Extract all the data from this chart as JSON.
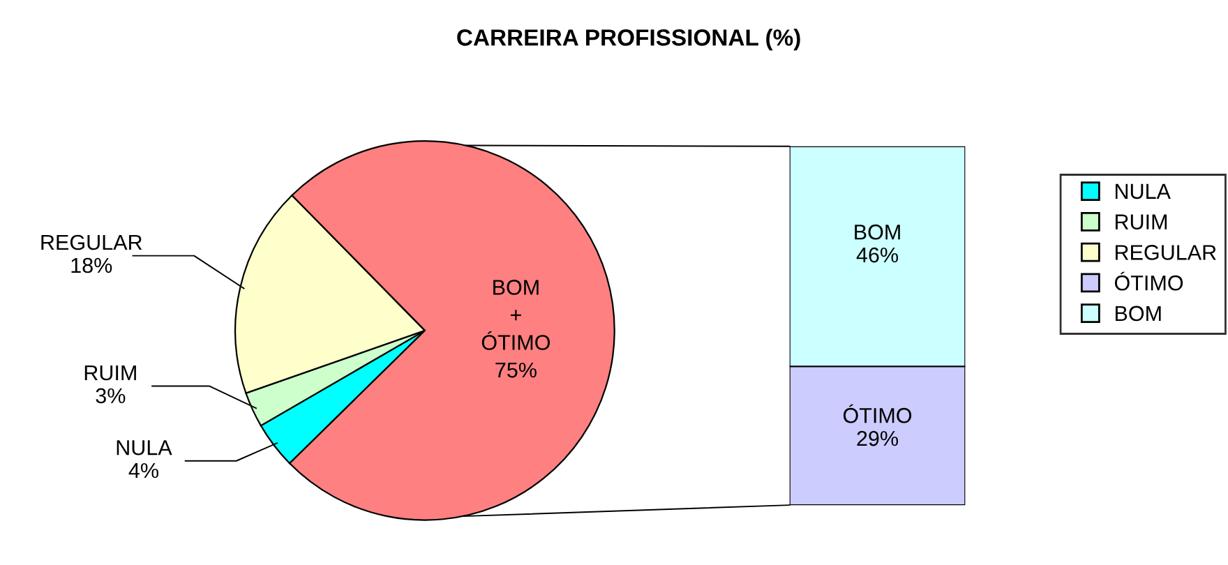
{
  "chart_data": [
    {
      "type": "pie",
      "title": "CARREIRA PROFISSIONAL (%)",
      "categories": [
        "NULA",
        "RUIM",
        "REGULAR",
        null
      ],
      "values": [
        4,
        3,
        18,
        75
      ],
      "colors": [
        "#00ffff",
        "#ccffcc",
        "#ffffcc",
        "#ff8080"
      ],
      "value_labels": [
        "4%",
        "3%",
        "18%",
        "75%"
      ],
      "annotations": [
        "BOM\n+\nÓTIMO"
      ],
      "legend": "right"
    },
    {
      "type": "bar",
      "stacked": true,
      "categories": [
        null
      ],
      "series": [
        {
          "name": "ÓTIMO",
          "color": "#ccccff",
          "values": [
            29
          ],
          "value_labels": [
            "29%"
          ]
        },
        {
          "name": "BOM",
          "color": "#ccffff",
          "values": [
            46
          ],
          "value_labels": [
            "46%"
          ]
        }
      ],
      "legend": "right"
    }
  ]
}
